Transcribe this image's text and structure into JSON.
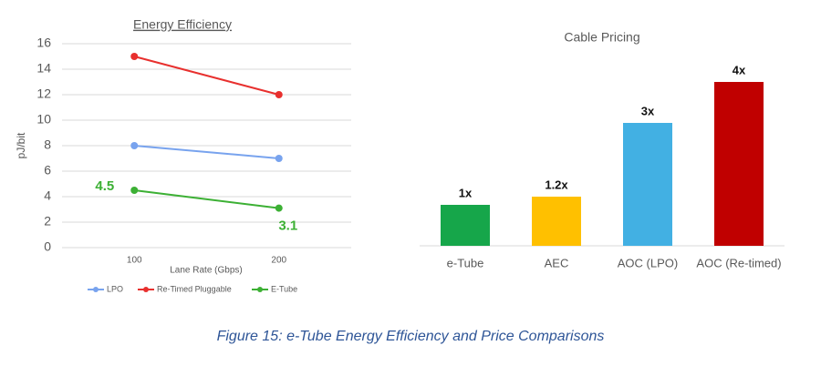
{
  "chart_data": [
    {
      "type": "line",
      "title": "Energy Efficiency",
      "x_label": "Lane Rate (Gbps)",
      "y_label": "pJ/bit",
      "categories": [
        "100",
        "200"
      ],
      "series": [
        {
          "name": "LPO",
          "color": "#78a3ee",
          "values": [
            8,
            7
          ]
        },
        {
          "name": "Re-Timed Pluggable",
          "color": "#e8302e",
          "values": [
            15,
            12
          ]
        },
        {
          "name": "E-Tube",
          "color": "#3cb034",
          "values": [
            4.5,
            3.1
          ],
          "data_labels": true
        }
      ],
      "ylim": [
        0,
        16
      ],
      "yticks": [
        0,
        2,
        4,
        6,
        8,
        10,
        12,
        14,
        16
      ],
      "grid": true,
      "legend": "bottom"
    },
    {
      "type": "bar",
      "title": "Cable Pricing",
      "categories": [
        "e-Tube",
        "AEC",
        "AOC (LPO)",
        "AOC (Re-timed)"
      ],
      "values": [
        1,
        1.2,
        3,
        4
      ],
      "value_labels": [
        "1x",
        "1.2x",
        "3x",
        "4x"
      ],
      "colors": [
        "#16a64a",
        "#ffc000",
        "#42b0e3",
        "#c00000"
      ]
    }
  ],
  "caption": "Figure 15: e-Tube Energy Efficiency and Price Comparisons"
}
